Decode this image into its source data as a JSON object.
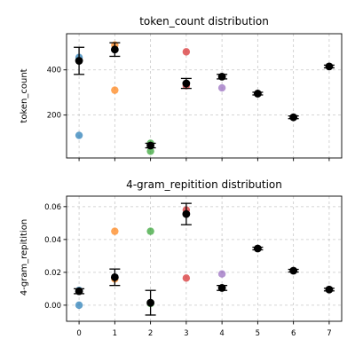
{
  "chart_data": [
    {
      "type": "scatter",
      "title": "token_count distribution",
      "ylabel": "token_count",
      "xlabel": "",
      "xlim": [
        -0.35,
        7.35
      ],
      "ylim": [
        10,
        560
      ],
      "yticks": [
        200,
        400
      ],
      "ytick_labels": [
        "200",
        "400"
      ],
      "x_ticks": [
        0,
        1,
        2,
        3,
        4,
        5,
        6,
        7
      ],
      "grid": true,
      "points": [
        {
          "x": 0,
          "y": 455,
          "color": "#1f77b4"
        },
        {
          "x": 0,
          "y": 110,
          "color": "#1f77b4"
        },
        {
          "x": 1,
          "y": 510,
          "color": "#ff7f0e"
        },
        {
          "x": 1,
          "y": 310,
          "color": "#ff7f0e"
        },
        {
          "x": 2,
          "y": 75,
          "color": "#2ca02c"
        },
        {
          "x": 2,
          "y": 40,
          "color": "#2ca02c"
        },
        {
          "x": 3,
          "y": 480,
          "color": "#d62728"
        },
        {
          "x": 3,
          "y": 330,
          "color": "#d62728"
        },
        {
          "x": 4,
          "y": 320,
          "color": "#9467bd"
        }
      ],
      "means": [
        {
          "x": 0,
          "y": 440,
          "err": 60
        },
        {
          "x": 1,
          "y": 490,
          "err": 30
        },
        {
          "x": 2,
          "y": 65,
          "err": 10
        },
        {
          "x": 3,
          "y": 340,
          "err": 22
        },
        {
          "x": 4,
          "y": 370,
          "err": 10
        },
        {
          "x": 5,
          "y": 295,
          "err": 6
        },
        {
          "x": 6,
          "y": 190,
          "err": 6
        },
        {
          "x": 7,
          "y": 415,
          "err": 6
        }
      ]
    },
    {
      "type": "scatter",
      "title": "4-gram_repitition distribution",
      "ylabel": "4-gram_repitition",
      "xlabel": "",
      "xlim": [
        -0.35,
        7.35
      ],
      "ylim": [
        -0.0098,
        0.0664
      ],
      "yticks": [
        0.0,
        0.02,
        0.04,
        0.06
      ],
      "ytick_labels": [
        "0.00",
        "0.02",
        "0.04",
        "0.06"
      ],
      "x_ticks": [
        0,
        1,
        2,
        3,
        4,
        5,
        6,
        7
      ],
      "x_tick_labels": [
        "0",
        "1",
        "2",
        "3",
        "4",
        "5",
        "6",
        "7"
      ],
      "grid": true,
      "points": [
        {
          "x": 0,
          "y": 0.009,
          "color": "#1f77b4"
        },
        {
          "x": 0,
          "y": 0.0,
          "color": "#1f77b4"
        },
        {
          "x": 1,
          "y": 0.045,
          "color": "#ff7f0e"
        },
        {
          "x": 1,
          "y": 0.016,
          "color": "#ff7f0e"
        },
        {
          "x": 2,
          "y": 0.045,
          "color": "#2ca02c"
        },
        {
          "x": 2,
          "y": 0.001,
          "color": "#2ca02c"
        },
        {
          "x": 3,
          "y": 0.058,
          "color": "#d62728"
        },
        {
          "x": 3,
          "y": 0.0165,
          "color": "#d62728"
        },
        {
          "x": 4,
          "y": 0.019,
          "color": "#9467bd"
        }
      ],
      "means": [
        {
          "x": 0,
          "y": 0.0085,
          "err": 0.0015
        },
        {
          "x": 1,
          "y": 0.017,
          "err": 0.005
        },
        {
          "x": 2,
          "y": 0.0015,
          "err": 0.0075
        },
        {
          "x": 3,
          "y": 0.0555,
          "err": 0.0065
        },
        {
          "x": 4,
          "y": 0.0105,
          "err": 0.0015
        },
        {
          "x": 5,
          "y": 0.0345,
          "err": 0.0008
        },
        {
          "x": 6,
          "y": 0.021,
          "err": 0.0008
        },
        {
          "x": 7,
          "y": 0.0095,
          "err": 0.0008
        }
      ]
    }
  ]
}
